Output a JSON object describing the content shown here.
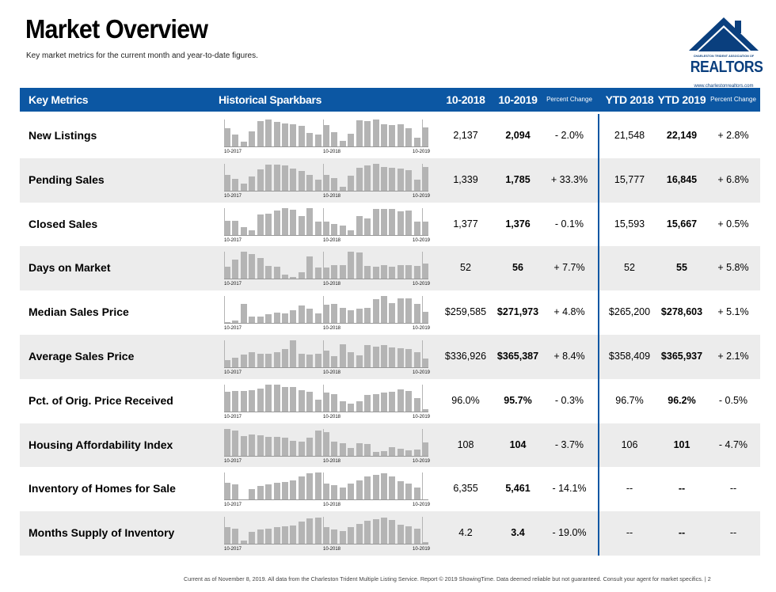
{
  "title": "Market Overview",
  "subtitle": "Key market metrics for the current month and year-to-date figures.",
  "logo": {
    "association": "CHARLESTON TRIDENT ASSOCIATION OF",
    "word": "REALTORS",
    "registered": "®",
    "url": "www.charlestonrealtors.com",
    "color": "#0a3f7e"
  },
  "colors": {
    "header_bg": "#0c57a3",
    "header_text": "#ffffff",
    "row_shade": "#ececec",
    "bar": "#b4b4b4"
  },
  "header": {
    "key_metrics": "Key Metrics",
    "sparkbars": "Historical Sparkbars",
    "col_2018": "10-2018",
    "col_2019": "10-2019",
    "pct_change": "Percent Change",
    "ytd_2018": "YTD 2018",
    "ytd_2019": "YTD 2019",
    "ytd_pct_change": "Percent Change"
  },
  "spark_axis": {
    "start": "10-2017",
    "mid": "10-2018",
    "end": "10-2019"
  },
  "rows": [
    {
      "name": "New Listings",
      "m2018": "2,137",
      "m2019": "2,094",
      "pct": "- 2.0%",
      "ytd2018": "21,548",
      "ytd2019": "22,149",
      "ytdpct": "+ 2.8%",
      "bars": [
        0.68,
        0.45,
        0.19,
        0.56,
        0.94,
        1.0,
        0.92,
        0.85,
        0.83,
        0.76,
        0.52,
        0.47,
        0.79,
        0.54,
        0.24,
        0.48,
        0.98,
        0.93,
        1.0,
        0.84,
        0.8,
        0.82,
        0.7,
        0.34,
        0.72
      ]
    },
    {
      "name": "Pending Sales",
      "m2018": "1,339",
      "m2019": "1,785",
      "pct": "+ 33.3%",
      "ytd2018": "15,777",
      "ytd2019": "16,845",
      "ytdpct": "+ 6.8%",
      "bars": [
        0.6,
        0.45,
        0.29,
        0.54,
        0.79,
        0.98,
        0.98,
        0.94,
        0.82,
        0.74,
        0.6,
        0.41,
        0.6,
        0.49,
        0.16,
        0.56,
        0.86,
        0.93,
        1.0,
        0.87,
        0.86,
        0.83,
        0.76,
        0.42,
        0.88
      ]
    },
    {
      "name": "Closed Sales",
      "m2018": "1,377",
      "m2019": "1,376",
      "pct": "- 0.1%",
      "ytd2018": "15,593",
      "ytd2019": "15,667",
      "ytdpct": "+ 0.5%",
      "bars": [
        0.52,
        0.52,
        0.3,
        0.19,
        0.76,
        0.79,
        0.9,
        1.0,
        0.94,
        0.69,
        0.98,
        0.51,
        0.51,
        0.42,
        0.36,
        0.2,
        0.71,
        0.62,
        0.95,
        0.95,
        0.97,
        0.88,
        0.89,
        0.5,
        0.5
      ]
    },
    {
      "name": "Days on Market",
      "m2018": "52",
      "m2019": "56",
      "pct": "+ 7.7%",
      "ytd2018": "52",
      "ytd2019": "55",
      "ytdpct": "+ 5.8%",
      "bars": [
        0.48,
        0.72,
        1.0,
        0.92,
        0.79,
        0.51,
        0.47,
        0.19,
        0.1,
        0.27,
        0.83,
        0.43,
        0.44,
        0.52,
        0.54,
        1.0,
        0.98,
        0.51,
        0.48,
        0.52,
        0.47,
        0.53,
        0.53,
        0.49,
        0.59
      ]
    },
    {
      "name": "Median Sales Price",
      "m2018": "$259,585",
      "m2019": "$271,973",
      "pct": "+ 4.8%",
      "ytd2018": "$265,200",
      "ytd2019": "$278,603",
      "ytdpct": "+ 5.1%",
      "bars": [
        0.06,
        0.12,
        0.71,
        0.25,
        0.25,
        0.34,
        0.42,
        0.39,
        0.5,
        0.66,
        0.54,
        0.38,
        0.68,
        0.72,
        0.58,
        0.48,
        0.56,
        0.59,
        0.88,
        1.0,
        0.75,
        0.92,
        0.92,
        0.72,
        0.44
      ]
    },
    {
      "name": "Average Sales Price",
      "m2018": "$336,926",
      "m2019": "$365,387",
      "pct": "+ 8.4%",
      "ytd2018": "$358,409",
      "ytd2019": "$365,937",
      "ytdpct": "+ 2.1%",
      "bars": [
        0.29,
        0.36,
        0.48,
        0.56,
        0.5,
        0.52,
        0.57,
        0.68,
        1.0,
        0.51,
        0.48,
        0.5,
        0.62,
        0.43,
        0.86,
        0.56,
        0.46,
        0.82,
        0.78,
        0.82,
        0.74,
        0.72,
        0.69,
        0.56,
        0.34
      ]
    },
    {
      "name": "Pct. of Orig. Price Received",
      "m2018": "96.0%",
      "m2019": "95.7%",
      "pct": "- 0.3%",
      "ytd2018": "96.7%",
      "ytd2019": "96.2%",
      "ytdpct": "- 0.5%",
      "bars": [
        0.74,
        0.76,
        0.76,
        0.78,
        0.86,
        1.0,
        0.98,
        0.92,
        0.9,
        0.8,
        0.73,
        0.46,
        0.7,
        0.64,
        0.38,
        0.32,
        0.4,
        0.62,
        0.66,
        0.72,
        0.74,
        0.82,
        0.76,
        0.5,
        0.12
      ]
    },
    {
      "name": "Housing Affordability Index",
      "m2018": "108",
      "m2019": "104",
      "pct": "- 3.7%",
      "ytd2018": "106",
      "ytd2019": "101",
      "ytdpct": "- 4.7%",
      "bars": [
        1.0,
        0.93,
        0.72,
        0.78,
        0.75,
        0.7,
        0.69,
        0.68,
        0.56,
        0.52,
        0.66,
        0.93,
        0.88,
        0.54,
        0.48,
        0.3,
        0.48,
        0.45,
        0.16,
        0.18,
        0.32,
        0.27,
        0.22,
        0.24,
        0.5
      ]
    },
    {
      "name": "Inventory of Homes for Sale",
      "m2018": "6,355",
      "m2019": "5,461",
      "pct": "- 14.1%",
      "ytd2018": "--",
      "ytd2019": "--",
      "ytdpct": "--",
      "bars": [
        0.65,
        0.58,
        0.05,
        0.42,
        0.52,
        0.58,
        0.64,
        0.68,
        0.72,
        0.86,
        0.97,
        1.0,
        0.62,
        0.55,
        0.48,
        0.62,
        0.72,
        0.88,
        0.92,
        0.98,
        0.88,
        0.7,
        0.62,
        0.48,
        0.05
      ]
    },
    {
      "name": "Months Supply of Inventory",
      "m2018": "4.2",
      "m2019": "3.4",
      "pct": "- 19.0%",
      "ytd2018": "--",
      "ytd2019": "--",
      "ytdpct": "--",
      "bars": [
        0.64,
        0.58,
        0.16,
        0.46,
        0.55,
        0.58,
        0.62,
        0.66,
        0.7,
        0.84,
        0.94,
        0.97,
        0.64,
        0.56,
        0.5,
        0.63,
        0.74,
        0.87,
        0.92,
        0.98,
        0.88,
        0.72,
        0.66,
        0.58,
        0.1
      ]
    }
  ],
  "footer": "Current as of November 8, 2019. All data from the Charleston Trident Multiple Listing Service. Report © 2019 ShowingTime. Data deemed reliable but not guaranteed. Consult your agent for market specifics.  |  2"
}
